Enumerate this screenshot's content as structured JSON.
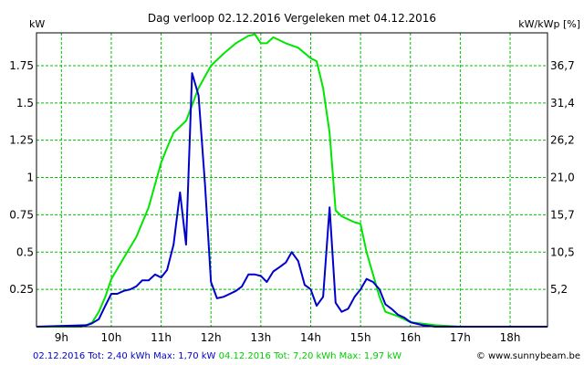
{
  "chart_data": {
    "type": "line",
    "title": "Dag  verloop 02.12.2016   Vergeleken met 04.12.2016",
    "ylabel_left": "kW",
    "ylabel_right": "kW/kWp [%]",
    "xlim": [
      8.5,
      18.75
    ],
    "ylim": [
      0,
      1.97
    ],
    "x_tick_values": [
      9,
      10,
      11,
      12,
      13,
      14,
      15,
      16,
      17,
      18
    ],
    "x_tick_labels": [
      "9h",
      "10h",
      "11h",
      "12h",
      "13h",
      "14h",
      "15h",
      "16h",
      "17h",
      "18h"
    ],
    "y_tick_values": [
      0.25,
      0.5,
      0.75,
      1,
      1.25,
      1.5,
      1.75
    ],
    "y_tick_labels": [
      "0.25",
      "0.5",
      "0.75",
      "1",
      "1.25",
      "1.5",
      "1.75"
    ],
    "y2_tick_labels": [
      "5,2",
      "10,5",
      "15,7",
      "21,0",
      "26,2",
      "31,4",
      "36,7"
    ],
    "grid": true,
    "series": [
      {
        "name": "02.12.2016",
        "color": "#0000cc",
        "x": [
          8.5,
          9.5,
          9.6,
          9.75,
          9.88,
          10.0,
          10.12,
          10.25,
          10.38,
          10.5,
          10.62,
          10.75,
          10.88,
          11.0,
          11.12,
          11.25,
          11.38,
          11.5,
          11.62,
          11.75,
          11.88,
          12.0,
          12.12,
          12.25,
          12.38,
          12.5,
          12.62,
          12.75,
          12.88,
          13.0,
          13.12,
          13.25,
          13.38,
          13.5,
          13.62,
          13.75,
          13.88,
          14.0,
          14.12,
          14.25,
          14.38,
          14.5,
          14.62,
          14.75,
          14.88,
          15.0,
          15.12,
          15.25,
          15.38,
          15.5,
          15.62,
          15.75,
          15.88,
          16.0,
          16.25,
          16.5,
          17.0,
          18.75
        ],
        "y": [
          0.0,
          0.01,
          0.02,
          0.05,
          0.14,
          0.22,
          0.22,
          0.24,
          0.25,
          0.27,
          0.31,
          0.31,
          0.35,
          0.33,
          0.38,
          0.55,
          0.9,
          0.55,
          1.7,
          1.55,
          0.95,
          0.3,
          0.19,
          0.2,
          0.22,
          0.24,
          0.27,
          0.35,
          0.35,
          0.34,
          0.3,
          0.37,
          0.4,
          0.43,
          0.5,
          0.44,
          0.28,
          0.25,
          0.14,
          0.2,
          0.8,
          0.16,
          0.1,
          0.12,
          0.2,
          0.25,
          0.32,
          0.3,
          0.25,
          0.15,
          0.12,
          0.08,
          0.06,
          0.03,
          0.01,
          0.0,
          0.0,
          0.0
        ]
      },
      {
        "name": "04.12.2016",
        "color": "#00e600",
        "x": [
          8.5,
          9.4,
          9.5,
          9.62,
          9.75,
          9.88,
          10.0,
          10.25,
          10.5,
          10.75,
          11.0,
          11.12,
          11.25,
          11.5,
          11.75,
          12.0,
          12.25,
          12.5,
          12.75,
          12.88,
          13.0,
          13.12,
          13.25,
          13.5,
          13.75,
          14.0,
          14.12,
          14.25,
          14.38,
          14.5,
          14.62,
          14.75,
          14.88,
          15.0,
          15.12,
          15.25,
          15.38,
          15.5,
          15.75,
          16.0,
          16.5,
          17.0,
          18.75
        ],
        "y": [
          0.0,
          0.0,
          0.01,
          0.03,
          0.1,
          0.2,
          0.32,
          0.46,
          0.6,
          0.8,
          1.1,
          1.2,
          1.3,
          1.38,
          1.6,
          1.75,
          1.83,
          1.9,
          1.95,
          1.96,
          1.9,
          1.9,
          1.94,
          1.9,
          1.87,
          1.8,
          1.78,
          1.6,
          1.3,
          0.78,
          0.74,
          0.72,
          0.7,
          0.69,
          0.5,
          0.35,
          0.2,
          0.1,
          0.07,
          0.03,
          0.01,
          0.0,
          0.0
        ]
      }
    ]
  },
  "footer": {
    "series1": "02.12.2016 Tot: 2,40 kWh Max: 1,70 kW",
    "series2": "04.12.2016 Tot: 7,20 kWh Max: 1,97 kW",
    "credit": "© www.sunnybeam.be"
  },
  "colors": {
    "grid": "#00c000",
    "axis": "#000000",
    "plot_bg": "#ffffff"
  }
}
